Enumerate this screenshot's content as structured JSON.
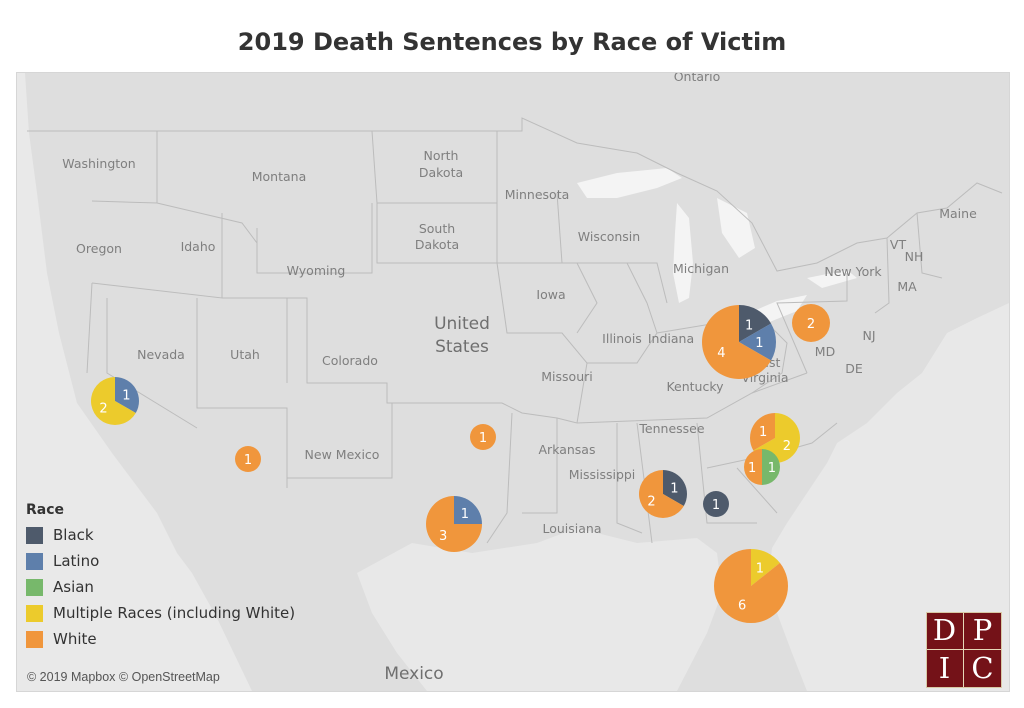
{
  "title": "2019 Death Sentences by Race of Victim",
  "map_labels": [
    {
      "key": "ontario",
      "text": "Ontario"
    },
    {
      "key": "washington",
      "text": "Washington"
    },
    {
      "key": "montana",
      "text": "Montana"
    },
    {
      "key": "north-dakota-1",
      "text": "North"
    },
    {
      "key": "north-dakota-2",
      "text": "Dakota"
    },
    {
      "key": "minnesota",
      "text": "Minnesota"
    },
    {
      "key": "south-dakota-1",
      "text": "South"
    },
    {
      "key": "south-dakota-2",
      "text": "Dakota"
    },
    {
      "key": "wisconsin",
      "text": "Wisconsin"
    },
    {
      "key": "maine",
      "text": "Maine"
    },
    {
      "key": "vermont",
      "text": "VT"
    },
    {
      "key": "new-hampshire",
      "text": "NH"
    },
    {
      "key": "oregon",
      "text": "Oregon"
    },
    {
      "key": "idaho",
      "text": "Idaho"
    },
    {
      "key": "wyoming",
      "text": "Wyoming"
    },
    {
      "key": "michigan",
      "text": "Michigan"
    },
    {
      "key": "new-york",
      "text": "New York"
    },
    {
      "key": "massachusetts",
      "text": "MA"
    },
    {
      "key": "iowa",
      "text": "Iowa"
    },
    {
      "key": "new-jersey",
      "text": "NJ"
    },
    {
      "key": "maryland",
      "text": "MD"
    },
    {
      "key": "delaware",
      "text": "DE"
    },
    {
      "key": "nevada",
      "text": "Nevada"
    },
    {
      "key": "utah",
      "text": "Utah"
    },
    {
      "key": "colorado",
      "text": "Colorado"
    },
    {
      "key": "illinois",
      "text": "Illinois"
    },
    {
      "key": "indiana",
      "text": "Indiana"
    },
    {
      "key": "west-virginia-1",
      "text": "West"
    },
    {
      "key": "west-virginia-2",
      "text": "Virginia"
    },
    {
      "key": "missouri",
      "text": "Missouri"
    },
    {
      "key": "kentucky",
      "text": "Kentucky"
    },
    {
      "key": "tennessee",
      "text": "Tennessee"
    },
    {
      "key": "new-mexico",
      "text": "New Mexico"
    },
    {
      "key": "arkansas",
      "text": "Arkansas"
    },
    {
      "key": "mississippi",
      "text": "Mississippi"
    },
    {
      "key": "louisiana",
      "text": "Louisiana"
    },
    {
      "key": "mexico",
      "text": "Mexico"
    },
    {
      "key": "united-1",
      "text": "United"
    },
    {
      "key": "united-2",
      "text": "States"
    }
  ],
  "legend": {
    "title": "Race",
    "items": [
      {
        "label": "Black",
        "color": "#4e5a6b"
      },
      {
        "label": "Latino",
        "color": "#5e7fab"
      },
      {
        "label": "Asian",
        "color": "#77b86b"
      },
      {
        "label": "Multiple Races (including White)",
        "color": "#eccb2c"
      },
      {
        "label": "White",
        "color": "#f0963c"
      }
    ]
  },
  "chart_data": {
    "type": "pie-map",
    "title": "2019 Death Sentences by Race of Victim",
    "series_colors": {
      "Black": "#4e5a6b",
      "Latino": "#5e7fab",
      "Asian": "#77b86b",
      "Multiple Races (including White)": "#eccb2c",
      "White": "#f0963c"
    },
    "pies": [
      {
        "location": "California",
        "slices": [
          {
            "race": "Latino",
            "value": 1
          },
          {
            "race": "Multiple Races (including White)",
            "value": 2
          }
        ]
      },
      {
        "location": "Arizona",
        "slices": [
          {
            "race": "White",
            "value": 1
          }
        ]
      },
      {
        "location": "Oklahoma",
        "slices": [
          {
            "race": "White",
            "value": 1
          }
        ]
      },
      {
        "location": "Texas",
        "slices": [
          {
            "race": "Latino",
            "value": 1
          },
          {
            "race": "White",
            "value": 3
          }
        ]
      },
      {
        "location": "Ohio",
        "slices": [
          {
            "race": "Black",
            "value": 1
          },
          {
            "race": "Latino",
            "value": 1
          },
          {
            "race": "White",
            "value": 4
          }
        ]
      },
      {
        "location": "Pennsylvania",
        "slices": [
          {
            "race": "White",
            "value": 2
          }
        ]
      },
      {
        "location": "Alabama",
        "slices": [
          {
            "race": "Black",
            "value": 1
          },
          {
            "race": "White",
            "value": 2
          }
        ]
      },
      {
        "location": "Georgia",
        "slices": [
          {
            "race": "Black",
            "value": 1
          }
        ]
      },
      {
        "location": "North Carolina",
        "slices": [
          {
            "race": "Multiple Races (including White)",
            "value": 2
          },
          {
            "race": "White",
            "value": 1
          }
        ]
      },
      {
        "location": "South Carolina",
        "slices": [
          {
            "race": "Asian",
            "value": 1
          },
          {
            "race": "White",
            "value": 1
          }
        ]
      },
      {
        "location": "Florida",
        "slices": [
          {
            "race": "Multiple Races (including White)",
            "value": 1
          },
          {
            "race": "White",
            "value": 6
          }
        ]
      }
    ]
  },
  "attribution": "© 2019 Mapbox © OpenStreetMap",
  "logo": {
    "letters": [
      "D",
      "P",
      "I",
      "C"
    ]
  }
}
